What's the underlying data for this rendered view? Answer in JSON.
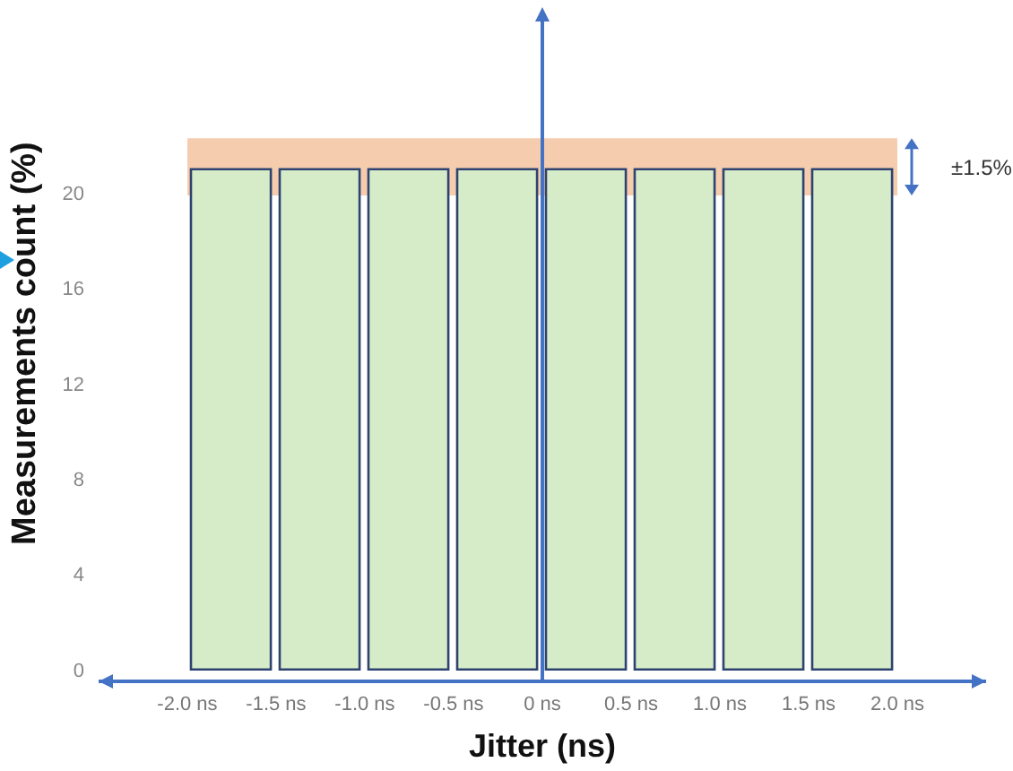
{
  "chart_data": {
    "type": "histogram",
    "xlabel": "Jitter (ns)",
    "ylabel": "Measurements count (%)",
    "bins": [
      -2,
      -1.5,
      -1,
      -0.5,
      0,
      0.5,
      1,
      1.5,
      2
    ],
    "values": [
      21,
      21,
      21,
      21,
      21,
      21,
      21,
      21
    ],
    "color": "#d6ebc8",
    "xlim": [
      -2.5,
      2.5
    ],
    "xticks": [
      {
        "value": -2,
        "label": "-2.0 ns"
      },
      {
        "value": -1.5,
        "label": "-1.5 ns"
      },
      {
        "value": -1,
        "label": "-1.0 ns"
      },
      {
        "value": -0.5,
        "label": "-0.5 ns"
      },
      {
        "value": 0,
        "label": "0 ns"
      },
      {
        "value": 0.5,
        "label": "0.5 ns"
      },
      {
        "value": 1,
        "label": "1.0 ns"
      },
      {
        "value": 1.5,
        "label": "1.5 ns"
      },
      {
        "value": 2,
        "label": "2.0 ns"
      }
    ],
    "ylim": [
      -0.5,
      27.5
    ],
    "yticks": [
      0,
      4,
      8,
      12,
      16,
      20
    ],
    "bands": [
      {
        "axis": "y",
        "from": 19.9,
        "to": 22.3,
        "label": "±1.5%",
        "color": "#f4bf9a"
      }
    ],
    "ref_lines": [
      {
        "axis": "x",
        "value": 0,
        "color": "#4472c4"
      }
    ],
    "grid": false
  }
}
